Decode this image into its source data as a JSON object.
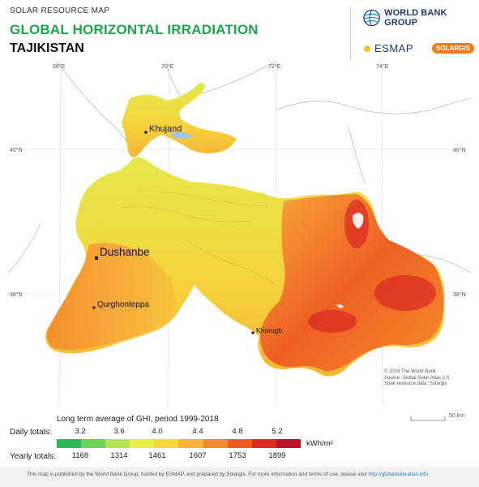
{
  "header": {
    "supertitle": "SOLAR RESOURCE MAP",
    "title": "GLOBAL HORIZONTAL IRRADIATION",
    "country": "TAJIKISTAN"
  },
  "logos": {
    "worldbank": "WORLD BANK GROUP",
    "esmap": "ESMAP",
    "solargis": "SOLARGIS"
  },
  "map": {
    "longitudes": [
      "68°E",
      "70°E",
      "72°E",
      "74°E"
    ],
    "latitudes": [
      "40°N",
      "38°N"
    ],
    "cities": {
      "khujand": "Khujand",
      "dushanbe": "Dushanbe",
      "qurghonteppa": "Qurghonteppa",
      "khorugh": "Khorugh"
    },
    "credits": {
      "line1": "© 2019 The World Bank",
      "line2": "Source: Global Solar Atlas 2.0",
      "line3": "Solar resource data: Solargis"
    },
    "scale_label": "50 km"
  },
  "legend": {
    "title": "Long term average of GHI, period 1999-2018",
    "daily_label": "Daily totals:",
    "yearly_label": "Yearly totals:",
    "daily_ticks": [
      "3.2",
      "3.6",
      "4.0",
      "4.4",
      "4.8",
      "5.2"
    ],
    "yearly_ticks": [
      "1168",
      "1314",
      "1461",
      "1607",
      "1753",
      "1899"
    ],
    "unit": "kWh/m²",
    "colors": [
      "#2fb85a",
      "#6dd05a",
      "#b6e34c",
      "#e8ee45",
      "#f7d63c",
      "#f9b233",
      "#f58b2a",
      "#ee5a21",
      "#df2a21",
      "#c0102c"
    ]
  },
  "footer": {
    "text": "This map is published by the World Bank Group, funded by ESMAP, and prepared by Solargis. For more information and terms of use, please visit ",
    "link": "http://globalsolaratlas.info"
  }
}
